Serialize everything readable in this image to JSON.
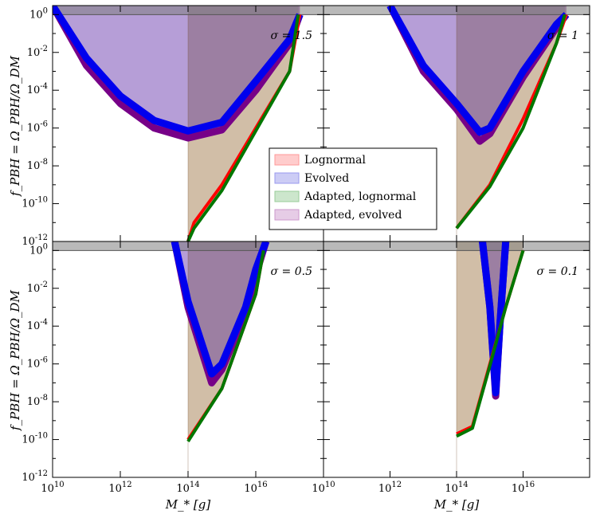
{
  "figure": {
    "xlabel": "M_* [g]",
    "ylabel": "f_PBH = Ω_PBH/Ω_DM"
  },
  "legend": {
    "position": "center",
    "entries": [
      {
        "label": "Lognormal",
        "color": "#ff9999"
      },
      {
        "label": "Evolved",
        "color": "#9999ee"
      },
      {
        "label": "Adapted, lognormal",
        "color": "#99cc99"
      },
      {
        "label": "Adapted, evolved",
        "color": "#cc99cc"
      }
    ]
  },
  "chart_data": [
    {
      "type": "area",
      "panel": "top-left",
      "annotation": "σ = 1.5",
      "xscale": "log",
      "yscale": "log",
      "xlim": [
        10000000000.0,
        1e+18
      ],
      "ylim": [
        1e-12,
        3
      ],
      "xticks": [
        10000000000.0,
        1000000000000.0,
        100000000000000.0,
        1e+16
      ],
      "yticks": [
        1e-12,
        1e-10,
        1e-08,
        1e-06,
        0.0001,
        0.01,
        1
      ],
      "exclusion_band_lower": 1,
      "cutoff_mass": 100000000000000.0,
      "series": [
        {
          "name": "Lognormal",
          "color": "#ff0000",
          "x": [
            100000000000000.0,
            150000000000000.0,
            1000000000000000.0,
            1e+16,
            1e+17,
            2e+17
          ],
          "y": [
            1e-12,
            1e-11,
            1e-09,
            1e-06,
            0.001,
            1
          ]
        },
        {
          "name": "Evolved",
          "color": "#0000ee",
          "x": [
            10000000000.0,
            100000000000.0,
            1000000000000.0,
            10000000000000.0,
            100000000000000.0,
            1000000000000000.0,
            1e+16,
            1e+17,
            2e+17
          ],
          "y": [
            3,
            0.005,
            5e-05,
            2.5e-06,
            7e-07,
            2e-06,
            0.0003,
            0.05,
            1
          ]
        },
        {
          "name": "Adapted, lognormal",
          "color": "#007700",
          "x": [
            100000000000000.0,
            150000000000000.0,
            1000000000000000.0,
            1e+16,
            1e+17,
            1.8e+17
          ],
          "y": [
            1e-12,
            5e-12,
            5e-10,
            7e-07,
            0.001,
            1
          ]
        },
        {
          "name": "Adapted, evolved",
          "color": "#770088",
          "x": [
            10000000000.0,
            100000000000.0,
            1000000000000.0,
            10000000000000.0,
            100000000000000.0,
            1000000000000000.0,
            1e+16,
            1e+17,
            2e+17
          ],
          "y": [
            3,
            0.002,
            2e-05,
            1e-06,
            3e-07,
            8e-07,
            0.0001,
            0.03,
            1
          ]
        }
      ]
    },
    {
      "type": "area",
      "panel": "top-right",
      "annotation": "σ = 1",
      "xscale": "log",
      "yscale": "log",
      "xlim": [
        10000000000.0,
        1e+18
      ],
      "ylim": [
        1e-12,
        3
      ],
      "xticks": [
        10000000000.0,
        1000000000000.0,
        100000000000000.0,
        1e+16
      ],
      "yticks": [
        1e-12,
        1e-10,
        1e-08,
        1e-06,
        0.0001,
        0.01,
        1
      ],
      "exclusion_band_lower": 1,
      "cutoff_mass": 100000000000000.0,
      "series": [
        {
          "name": "Lognormal",
          "color": "#ff0000",
          "x": [
            100000000000000.0,
            1000000000000000.0,
            1e+16,
            1e+17,
            2e+17
          ],
          "y": [
            5e-12,
            1e-09,
            3e-06,
            0.03,
            1
          ]
        },
        {
          "name": "Evolved",
          "color": "#0000ee",
          "x": [
            1000000000000.0,
            10000000000000.0,
            100000000000000.0,
            500000000000000.0,
            1000000000000000.0,
            1e+16,
            1e+17,
            2e+17
          ],
          "y": [
            3,
            0.002,
            2e-05,
            6e-07,
            1e-06,
            0.001,
            0.3,
            1
          ]
        },
        {
          "name": "Adapted, lognormal",
          "color": "#007700",
          "x": [
            100000000000000.0,
            1000000000000000.0,
            1e+16,
            1e+17,
            1.8e+17
          ],
          "y": [
            5e-12,
            8e-10,
            1e-06,
            0.03,
            1
          ]
        },
        {
          "name": "Adapted, evolved",
          "color": "#770088",
          "x": [
            1000000000000.0,
            10000000000000.0,
            100000000000000.0,
            500000000000000.0,
            1000000000000000.0,
            1e+16,
            1e+17,
            2e+17
          ],
          "y": [
            3,
            0.001,
            1e-05,
            2e-07,
            5e-07,
            0.0005,
            0.2,
            1
          ]
        }
      ]
    },
    {
      "type": "area",
      "panel": "bottom-left",
      "annotation": "σ = 0.5",
      "xscale": "log",
      "yscale": "log",
      "xlim": [
        10000000000.0,
        1e+18
      ],
      "ylim": [
        1e-12,
        3
      ],
      "xticks": [
        10000000000.0,
        1000000000000.0,
        100000000000000.0,
        1e+16
      ],
      "yticks": [
        1e-12,
        1e-10,
        1e-08,
        1e-06,
        0.0001,
        0.01,
        1
      ],
      "exclusion_band_lower": 1,
      "cutoff_mass": 100000000000000.0,
      "series": [
        {
          "name": "Lognormal",
          "color": "#ff0000",
          "x": [
            100000000000000.0,
            1000000000000000.0,
            1e+16,
            1.7e+16
          ],
          "y": [
            1e-10,
            5e-08,
            0.005,
            1
          ]
        },
        {
          "name": "Evolved",
          "color": "#0000ee",
          "x": [
            40000000000000.0,
            100000000000000.0,
            500000000000000.0,
            1000000000000000.0,
            5000000000000000.0,
            1e+16,
            2e+16
          ],
          "y": [
            3,
            0.002,
            3e-07,
            1e-06,
            0.001,
            0.1,
            3
          ]
        },
        {
          "name": "Adapted, lognormal",
          "color": "#007700",
          "x": [
            100000000000000.0,
            1000000000000000.0,
            1e+16,
            1.7e+16
          ],
          "y": [
            8e-11,
            5e-08,
            0.005,
            1
          ]
        },
        {
          "name": "Adapted, evolved",
          "color": "#770088",
          "x": [
            40000000000000.0,
            100000000000000.0,
            500000000000000.0,
            1000000000000000.0,
            5000000000000000.0,
            1e+16,
            2e+16
          ],
          "y": [
            3,
            0.001,
            1e-07,
            5e-07,
            0.0005,
            0.05,
            3
          ]
        }
      ]
    },
    {
      "type": "area",
      "panel": "bottom-right",
      "annotation": "σ = 0.1",
      "xscale": "log",
      "yscale": "log",
      "xlim": [
        10000000000.0,
        1e+18
      ],
      "ylim": [
        1e-12,
        3
      ],
      "xticks": [
        10000000000.0,
        1000000000000.0,
        100000000000000.0,
        1e+16
      ],
      "yticks": [
        1e-12,
        1e-10,
        1e-08,
        1e-06,
        0.0001,
        0.01,
        1
      ],
      "exclusion_band_lower": 1,
      "cutoff_mass": 100000000000000.0,
      "series": [
        {
          "name": "Lognormal",
          "color": "#ff0000",
          "x": [
            100000000000000.0,
            300000000000000.0,
            1000000000000000.0,
            3000000000000000.0,
            1e+16
          ],
          "y": [
            2e-10,
            5e-10,
            1e-06,
            0.001,
            1
          ]
        },
        {
          "name": "Evolved",
          "color": "#0000ee",
          "x": [
            600000000000000.0,
            1000000000000000.0,
            1500000000000000.0,
            2000000000000000.0,
            3000000000000000.0
          ],
          "y": [
            3,
            0.001,
            3e-08,
            0.0001,
            3
          ]
        },
        {
          "name": "Adapted, lognormal",
          "color": "#007700",
          "x": [
            100000000000000.0,
            300000000000000.0,
            1000000000000000.0,
            3000000000000000.0,
            1e+16
          ],
          "y": [
            1.5e-10,
            4e-10,
            8e-07,
            0.001,
            1
          ]
        },
        {
          "name": "Adapted, evolved",
          "color": "#770088",
          "x": [
            600000000000000.0,
            1000000000000000.0,
            1500000000000000.0,
            2000000000000000.0,
            3000000000000000.0
          ],
          "y": [
            3,
            0.001,
            2e-08,
            0.0001,
            3
          ]
        }
      ]
    }
  ]
}
